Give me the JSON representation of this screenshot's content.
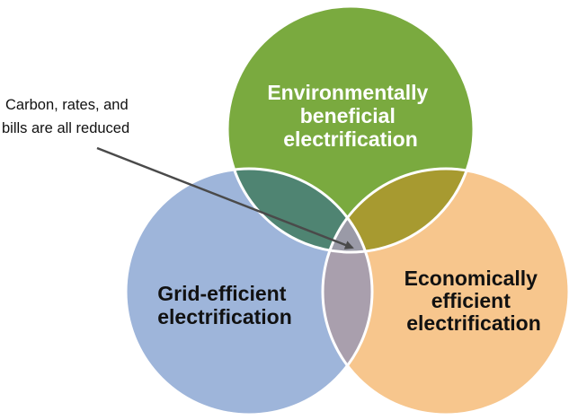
{
  "diagram": {
    "callout": {
      "line1": "Carbon, rates, and",
      "line2": "bills are all reduced"
    },
    "circles": {
      "environmental": {
        "lines": [
          "Environmentally",
          "beneficial",
          "electrification"
        ],
        "fill": "#7aaa3f",
        "text_color": "#ffffff"
      },
      "grid": {
        "lines": [
          "Grid-efficient",
          "electrification"
        ],
        "fill": "#9eb5da",
        "text_color": "#111111"
      },
      "economic": {
        "lines": [
          "Economically",
          "efficient",
          "electrification"
        ],
        "fill": "#f7c68d",
        "text_color": "#111111"
      }
    },
    "overlap_colors": {
      "env_grid": "#4f8472",
      "env_econ": "#a79a30",
      "grid_econ": "#a99fad",
      "center": "#9a9aa7"
    },
    "edge_color": "#ffffff",
    "arrow_color": "#4a4a4a"
  }
}
